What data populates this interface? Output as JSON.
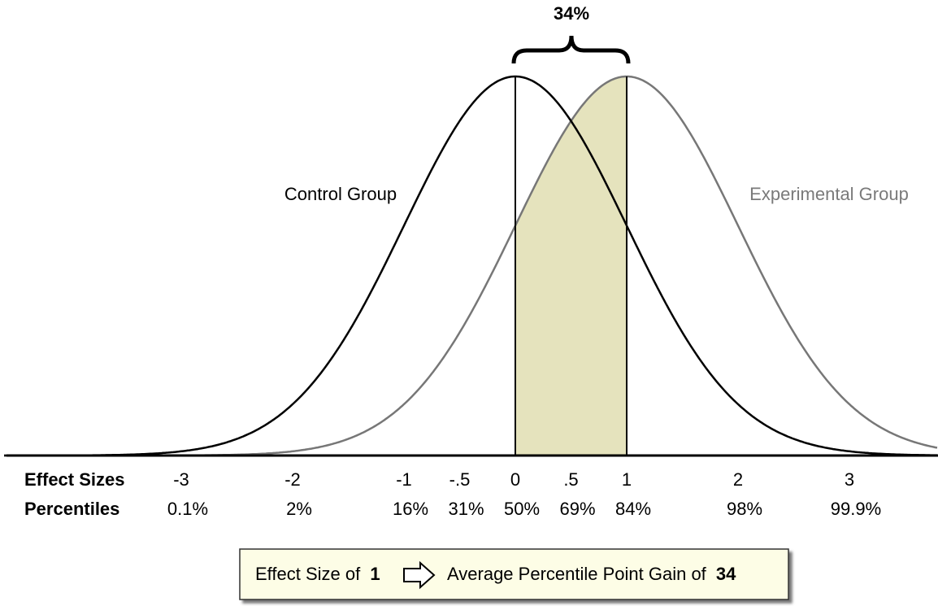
{
  "title": "34%",
  "labels": {
    "control": "Control Group",
    "experimental": "Experimental Group"
  },
  "rows": {
    "effect_sizes": "Effect Sizes",
    "percentiles": "Percentiles"
  },
  "effect_sizes": [
    -3,
    -2,
    -1,
    {
      "value": -0.5,
      "label": "-.5"
    },
    0,
    {
      "value": 0.5,
      "label": ".5"
    },
    1,
    2,
    3
  ],
  "percentiles": [
    "0.1%",
    "2%",
    "16%",
    "31%",
    "50%",
    "69%",
    "84%",
    "98%",
    "99.9%"
  ],
  "callout": {
    "lead": "Effect Size of",
    "effect": "1",
    "trail": "Average Percentile Point Gain of",
    "gain": "34"
  }
}
